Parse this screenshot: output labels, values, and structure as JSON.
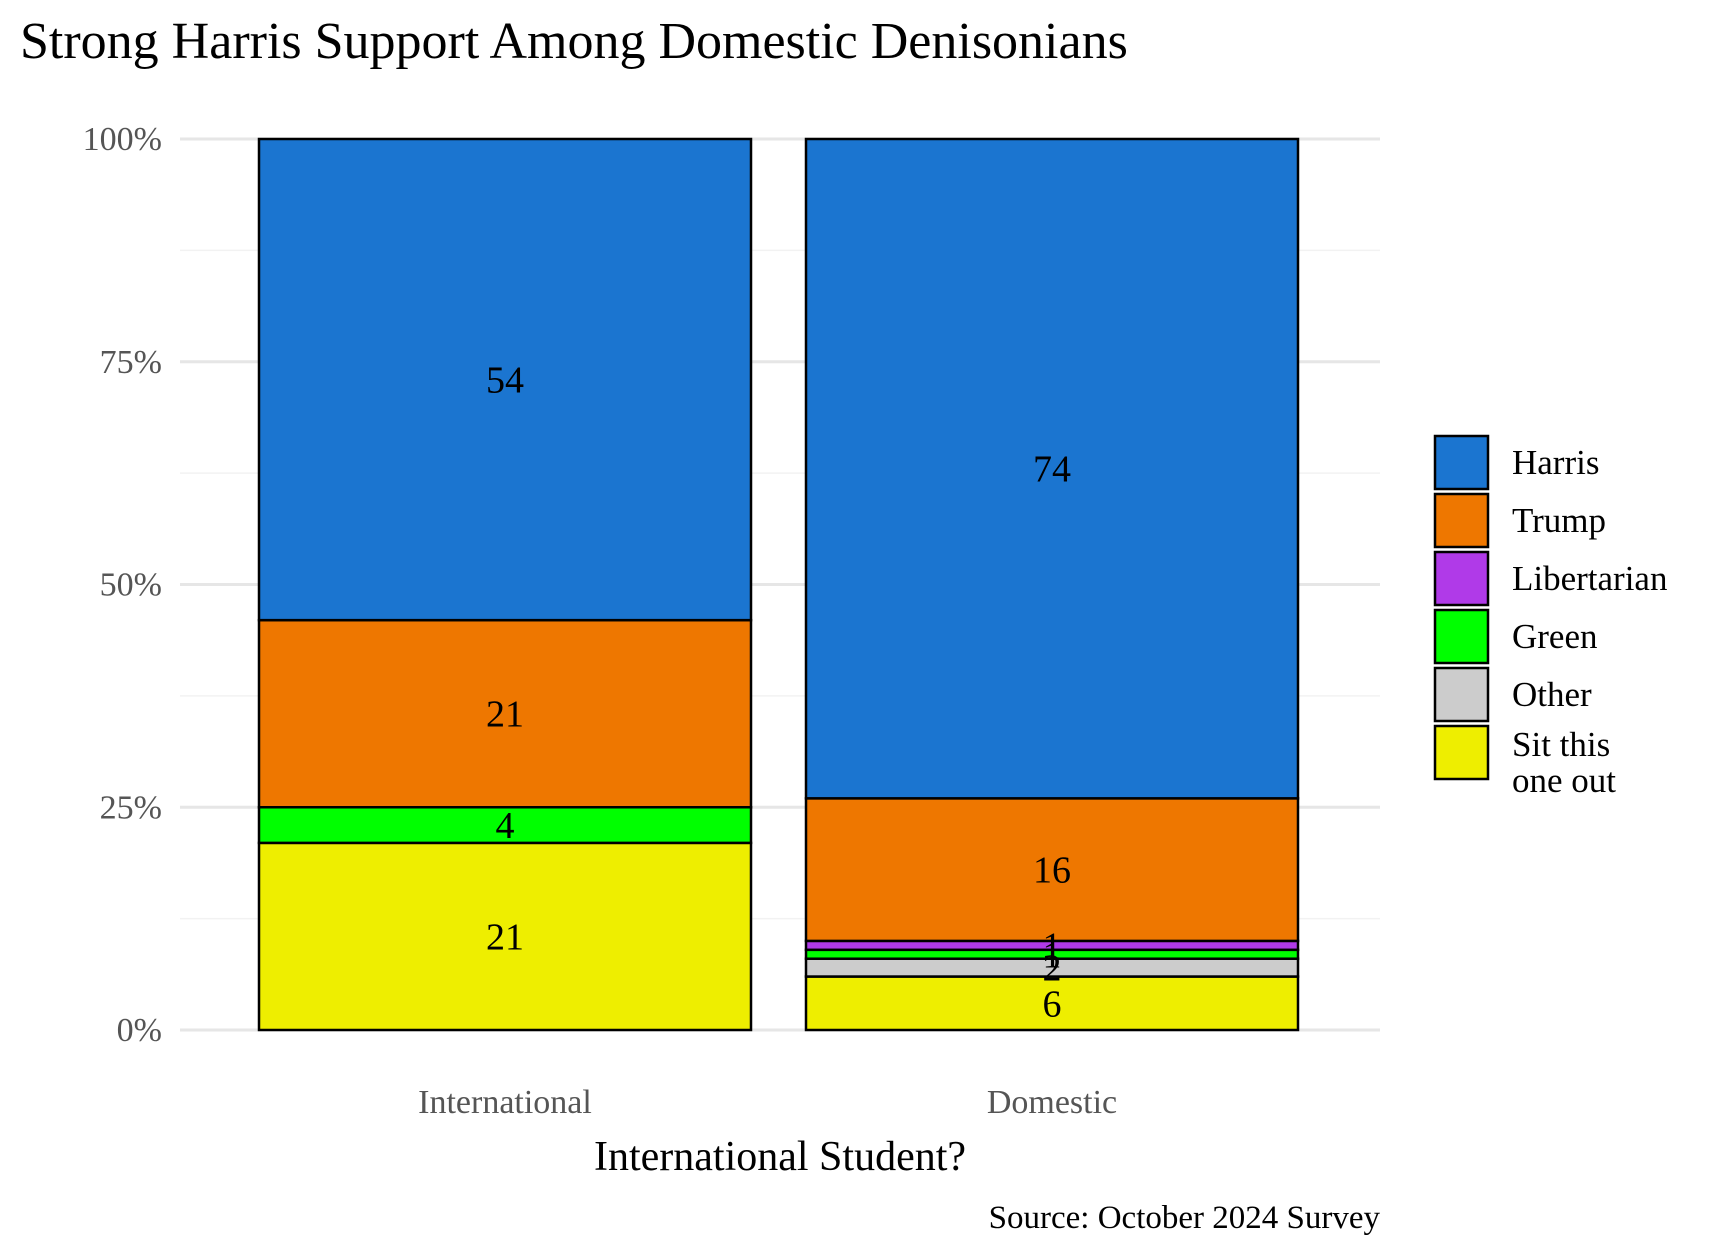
{
  "chart_data": {
    "type": "bar",
    "stacked": true,
    "percent_axis": true,
    "title": "Strong Harris Support Among Domestic Denisonians",
    "xlabel": "International Student?",
    "ylabel": "",
    "caption": "Source: October 2024 Survey",
    "categories": [
      "International",
      "Domestic"
    ],
    "y_ticks": [
      "0%",
      "25%",
      "50%",
      "75%",
      "100%"
    ],
    "ylim": [
      0,
      100
    ],
    "grid": true,
    "legend_position": "right",
    "series": [
      {
        "name": "Harris",
        "color": "#1b75d0",
        "values": [
          54,
          74
        ]
      },
      {
        "name": "Trump",
        "color": "#ee7700",
        "values": [
          21,
          16
        ]
      },
      {
        "name": "Libertarian",
        "color": "#b03ae8",
        "values": [
          0,
          1
        ]
      },
      {
        "name": "Green",
        "color": "#00ff00",
        "values": [
          4,
          1
        ]
      },
      {
        "name": "Other",
        "color": "#cccccc",
        "values": [
          0,
          2
        ]
      },
      {
        "name": "Sit this one out",
        "legend_lines": [
          "Sit this",
          "one out"
        ],
        "color": "#eeee00",
        "values": [
          21,
          6
        ]
      }
    ]
  }
}
